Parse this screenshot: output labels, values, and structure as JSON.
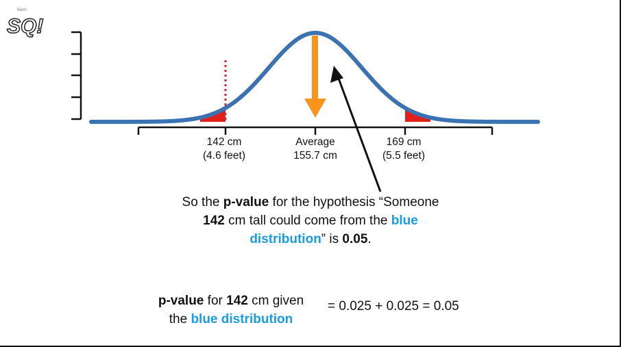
{
  "logo": {
    "line1": "Bam!",
    "main": "SQ!"
  },
  "axis": {
    "left_tick": {
      "line1": "142 cm",
      "line2": "(4.6 feet)"
    },
    "mid_tick": {
      "line1": "Average",
      "line2": "155.7 cm"
    },
    "right_tick": {
      "line1": "169 cm",
      "line2": "(5.5 feet)"
    }
  },
  "caption": {
    "p1": "So the ",
    "p2": "p-value",
    "p3": " for the hypothesis “Someone",
    "p4": "142",
    "p5": " cm tall could come from the ",
    "p6": "blue",
    "p7": "distribution",
    "p8": "” is ",
    "p9": "0.05",
    "p10": "."
  },
  "equation": {
    "l1": "p-value",
    "l2": " for ",
    "l3": "142",
    "l4": " cm given",
    "l5": "the ",
    "l6": "blue distribution",
    "rhs": "= 0.025 + 0.025 = 0.05"
  },
  "colors": {
    "curve": "#3b73b2",
    "tail": "#e0211b",
    "arrow": "#f7941d",
    "blue_text": "#1a9be6",
    "threshold": "#d3202a"
  },
  "icons": [
    "down-arrow-icon",
    "pointer-arrow-icon"
  ]
}
